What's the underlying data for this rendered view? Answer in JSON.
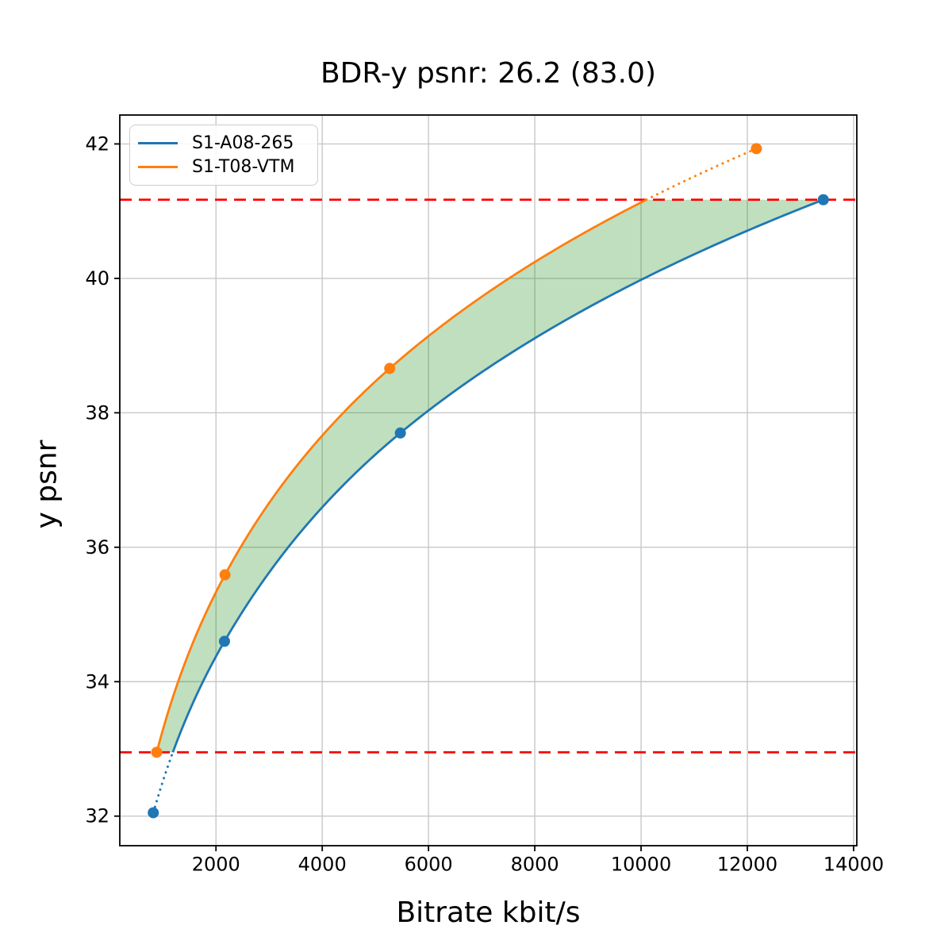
{
  "chart_data": {
    "type": "line",
    "title": "BDR-y psnr: 26.2 (83.0)",
    "xlabel": "Bitrate kbit/s",
    "ylabel": "y psnr",
    "xlim": [
      190,
      14060
    ],
    "ylim": [
      31.56,
      42.43
    ],
    "x_ticks": [
      2000,
      4000,
      6000,
      8000,
      10000,
      12000,
      14000
    ],
    "y_ticks": [
      32,
      34,
      36,
      38,
      40,
      42
    ],
    "grid": true,
    "grid_color": "#c8c8c8",
    "legend_position": "upper left",
    "interpolation": "pchip-log-x",
    "series": [
      {
        "name": "S1-A08-265",
        "color": "#1f77b4",
        "points": [
          [
            820,
            32.05
          ],
          [
            2160,
            34.6
          ],
          [
            5470,
            37.7
          ],
          [
            13430,
            41.17
          ]
        ]
      },
      {
        "name": "S1-T08-VTM",
        "color": "#ff7f0e",
        "points": [
          [
            885,
            32.95
          ],
          [
            2170,
            35.59
          ],
          [
            5270,
            38.66
          ],
          [
            12170,
            41.93
          ]
        ]
      }
    ],
    "overlap_lines": {
      "color": "#ff0000",
      "style": "dashed",
      "y_low": 32.95,
      "y_high": 41.17
    },
    "fill_between": {
      "color": "#008000",
      "opacity": 0.25
    }
  }
}
